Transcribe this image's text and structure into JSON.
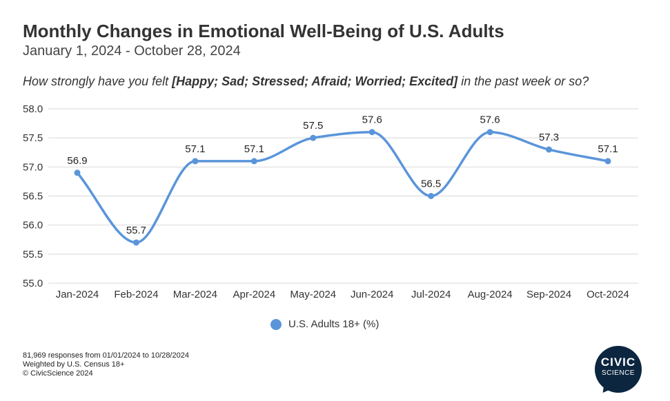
{
  "title": "Monthly Changes in Emotional Well-Being of U.S. Adults",
  "subtitle": "January 1, 2024 - October 28, 2024",
  "question": {
    "before": "How strongly have you felt ",
    "bold": "[Happy; Sad; Stressed; Afraid; Worried; Excited]",
    "after": " in the past week or so?"
  },
  "footnotes": [
    "81,969 responses from 01/01/2024 to 10/28/2024",
    "Weighted by U.S. Census 18+",
    "© CivicScience 2024"
  ],
  "logo": {
    "line1": "CIVIC",
    "line2": "SCIENCE"
  },
  "colors": {
    "series": "#5a95da",
    "grid": "#d9d9d9",
    "text": "#333333",
    "logo": "#0c2640"
  },
  "chart_data": {
    "type": "line",
    "categories": [
      "Jan-2024",
      "Feb-2024",
      "Mar-2024",
      "Apr-2024",
      "May-2024",
      "Jun-2024",
      "Jul-2024",
      "Aug-2024",
      "Sep-2024",
      "Oct-2024"
    ],
    "series": [
      {
        "name": "U.S. Adults 18+ (%)",
        "values": [
          56.9,
          55.7,
          57.1,
          57.1,
          57.5,
          57.6,
          56.5,
          57.6,
          57.3,
          57.1
        ]
      }
    ],
    "data_labels": [
      "56.9",
      "55.7",
      "57.1",
      "57.1",
      "57.5",
      "57.6",
      "56.5",
      "57.6",
      "57.3",
      "57.1"
    ],
    "ylim": [
      55.0,
      58.0
    ],
    "yticks": [
      "55.0",
      "55.5",
      "56.0",
      "56.5",
      "57.0",
      "57.5",
      "58.0"
    ],
    "smooth": true,
    "grid": true,
    "legend_position": "bottom-center"
  }
}
